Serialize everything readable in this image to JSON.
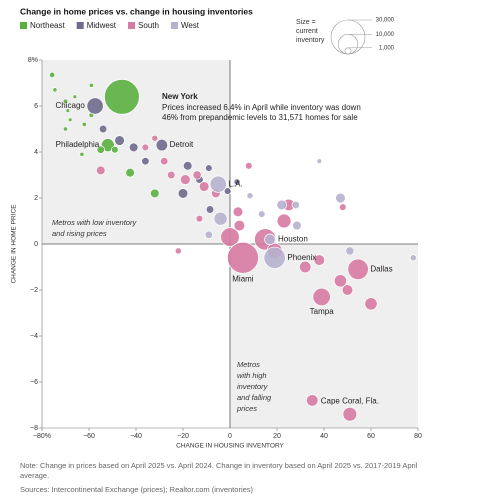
{
  "chart_data": {
    "type": "bubble",
    "title": "Change in home prices vs. change in housing inventories",
    "x_label": "CHANGE IN HOUSING INVENTORY",
    "y_label": "CHANGE IN HOME PRICE",
    "xlim": [
      -80,
      80
    ],
    "ylim": [
      -8,
      8
    ],
    "xticks": [
      {
        "value": -80,
        "label": "−80%"
      },
      {
        "value": -60,
        "label": "−60"
      },
      {
        "value": -40,
        "label": "−40"
      },
      {
        "value": -20,
        "label": "−20"
      },
      0,
      20,
      40,
      60,
      80
    ],
    "yticks": [
      {
        "value": 8,
        "label": "8%"
      },
      6,
      4,
      2,
      0,
      {
        "value": -2,
        "label": "−2"
      },
      {
        "value": -4,
        "label": "−4"
      },
      {
        "value": -6,
        "label": "−6"
      },
      {
        "value": -8,
        "label": "−8"
      }
    ],
    "grid": false,
    "legend": "top-left",
    "size_legend": {
      "title": [
        "Size =",
        "current",
        "inventory"
      ],
      "values": [
        {
          "value": 30000,
          "label": "30,000"
        },
        {
          "value": 10000,
          "label": "10,000"
        },
        {
          "value": 1000,
          "label": "1,000"
        }
      ]
    },
    "series": [
      {
        "name": "Northeast",
        "color": "#5bb040",
        "x": [
          -75.7,
          -74.5,
          -70,
          -66,
          -59,
          -69,
          -68,
          -70,
          -62,
          -59,
          -63,
          -46,
          -52,
          -42.5,
          -32,
          -55,
          -49
        ],
        "values": [
          7.35,
          6.7,
          6.2,
          6.4,
          6.9,
          5.8,
          5.4,
          5.0,
          5.2,
          5.6,
          3.9,
          6.4,
          4.3,
          3.1,
          2.2,
          4.1,
          4.1
        ],
        "sizes": [
          800,
          500,
          600,
          400,
          500,
          400,
          400,
          500,
          500,
          600,
          500,
          31571,
          4500,
          2000,
          2000,
          1500,
          1200
        ],
        "labels": [
          null,
          null,
          null,
          null,
          null,
          null,
          null,
          null,
          null,
          null,
          null,
          null,
          "Philadelphia",
          null,
          null,
          null,
          null
        ]
      },
      {
        "name": "Midwest",
        "color": "#6d6a8c",
        "x": [
          -57.4,
          -54,
          -47,
          -41,
          -29,
          -36,
          -18,
          -20,
          -9,
          -1,
          -13,
          3,
          -8.5
        ],
        "values": [
          6.0,
          5.0,
          4.5,
          4.2,
          4.3,
          3.6,
          3.4,
          2.2,
          3.3,
          2.3,
          2.8,
          2.7,
          1.5
        ],
        "sizes": [
          7000,
          1500,
          2500,
          2000,
          3500,
          1500,
          2000,
          2500,
          1200,
          1200,
          1500,
          1000,
          1500
        ],
        "labels": [
          "Chicago",
          null,
          null,
          null,
          "Detroit",
          null,
          null,
          null,
          null,
          null,
          null,
          null,
          null
        ]
      },
      {
        "name": "South",
        "color": "#d67aa2",
        "x": [
          -55,
          -36,
          -32,
          -28,
          -25,
          -19,
          -14,
          -11,
          -6,
          8,
          3.4,
          -13,
          -22,
          0,
          5.5,
          4,
          15,
          23,
          25,
          19,
          32,
          38,
          54.5,
          47,
          50,
          39,
          60,
          51,
          35,
          48
        ],
        "values": [
          3.2,
          4.2,
          4.6,
          3.6,
          3.0,
          2.8,
          3.0,
          2.5,
          2.2,
          3.4,
          1.4,
          1.1,
          -0.3,
          0.3,
          -0.6,
          0.8,
          0.2,
          1.0,
          1.7,
          -0.3,
          -1.0,
          -0.7,
          -1.1,
          -1.6,
          -2.0,
          -2.3,
          -2.6,
          -7.4,
          -6.8,
          1.6
        ],
        "sizes": [
          2000,
          1200,
          1000,
          1500,
          1500,
          2500,
          1800,
          2500,
          2000,
          1200,
          2500,
          1200,
          1000,
          9000,
          25000,
          3000,
          12000,
          5000,
          3500,
          6000,
          3500,
          3000,
          11000,
          4000,
          3000,
          8000,
          4000,
          5000,
          3500,
          1200
        ],
        "labels": [
          null,
          null,
          null,
          null,
          null,
          null,
          null,
          null,
          null,
          null,
          null,
          null,
          null,
          null,
          "Miami",
          null,
          "Houston",
          null,
          null,
          null,
          null,
          null,
          "Dallas",
          null,
          null,
          "Tampa",
          null,
          "Cape Coral, Fla.",
          null,
          null
        ]
      },
      {
        "name": "West",
        "color": "#b6b1cd",
        "x": [
          -5,
          -4,
          -9,
          8.5,
          19,
          22,
          28.5,
          38,
          47,
          51,
          78,
          17,
          28,
          13.5
        ],
        "values": [
          2.6,
          1.1,
          0.4,
          2.1,
          -0.6,
          1.7,
          0.8,
          3.6,
          2.0,
          -0.3,
          -0.6,
          0.2,
          1.7,
          1.3
        ],
        "sizes": [
          7000,
          4500,
          1500,
          1000,
          12000,
          2500,
          2000,
          600,
          2500,
          1800,
          1000,
          3000,
          1500,
          1200
        ],
        "labels": [
          "L.A.",
          null,
          null,
          null,
          "Phoenix",
          null,
          null,
          null,
          null,
          null,
          null,
          null,
          null,
          null
        ]
      }
    ],
    "annotations": [
      {
        "title": "New York",
        "lines": [
          "Prices increased 6.4% in April while inventory was down",
          "46% from prepandemic levels to 31,571 homes for sale"
        ]
      },
      {
        "lines": [
          "Metros with low inventory",
          "and rising prices"
        ]
      },
      {
        "lines": [
          "Metros",
          "with high",
          "inventory",
          "and falling",
          "prices"
        ]
      }
    ],
    "note": [
      "Note: Change in prices based on April 2025 vs. April 2024. Change in inventory based on April 2025 vs. 2017-2019 April",
      "average."
    ],
    "source": "Sources: Intercontinental Exchange (prices); Realtor.com (inventories)"
  }
}
